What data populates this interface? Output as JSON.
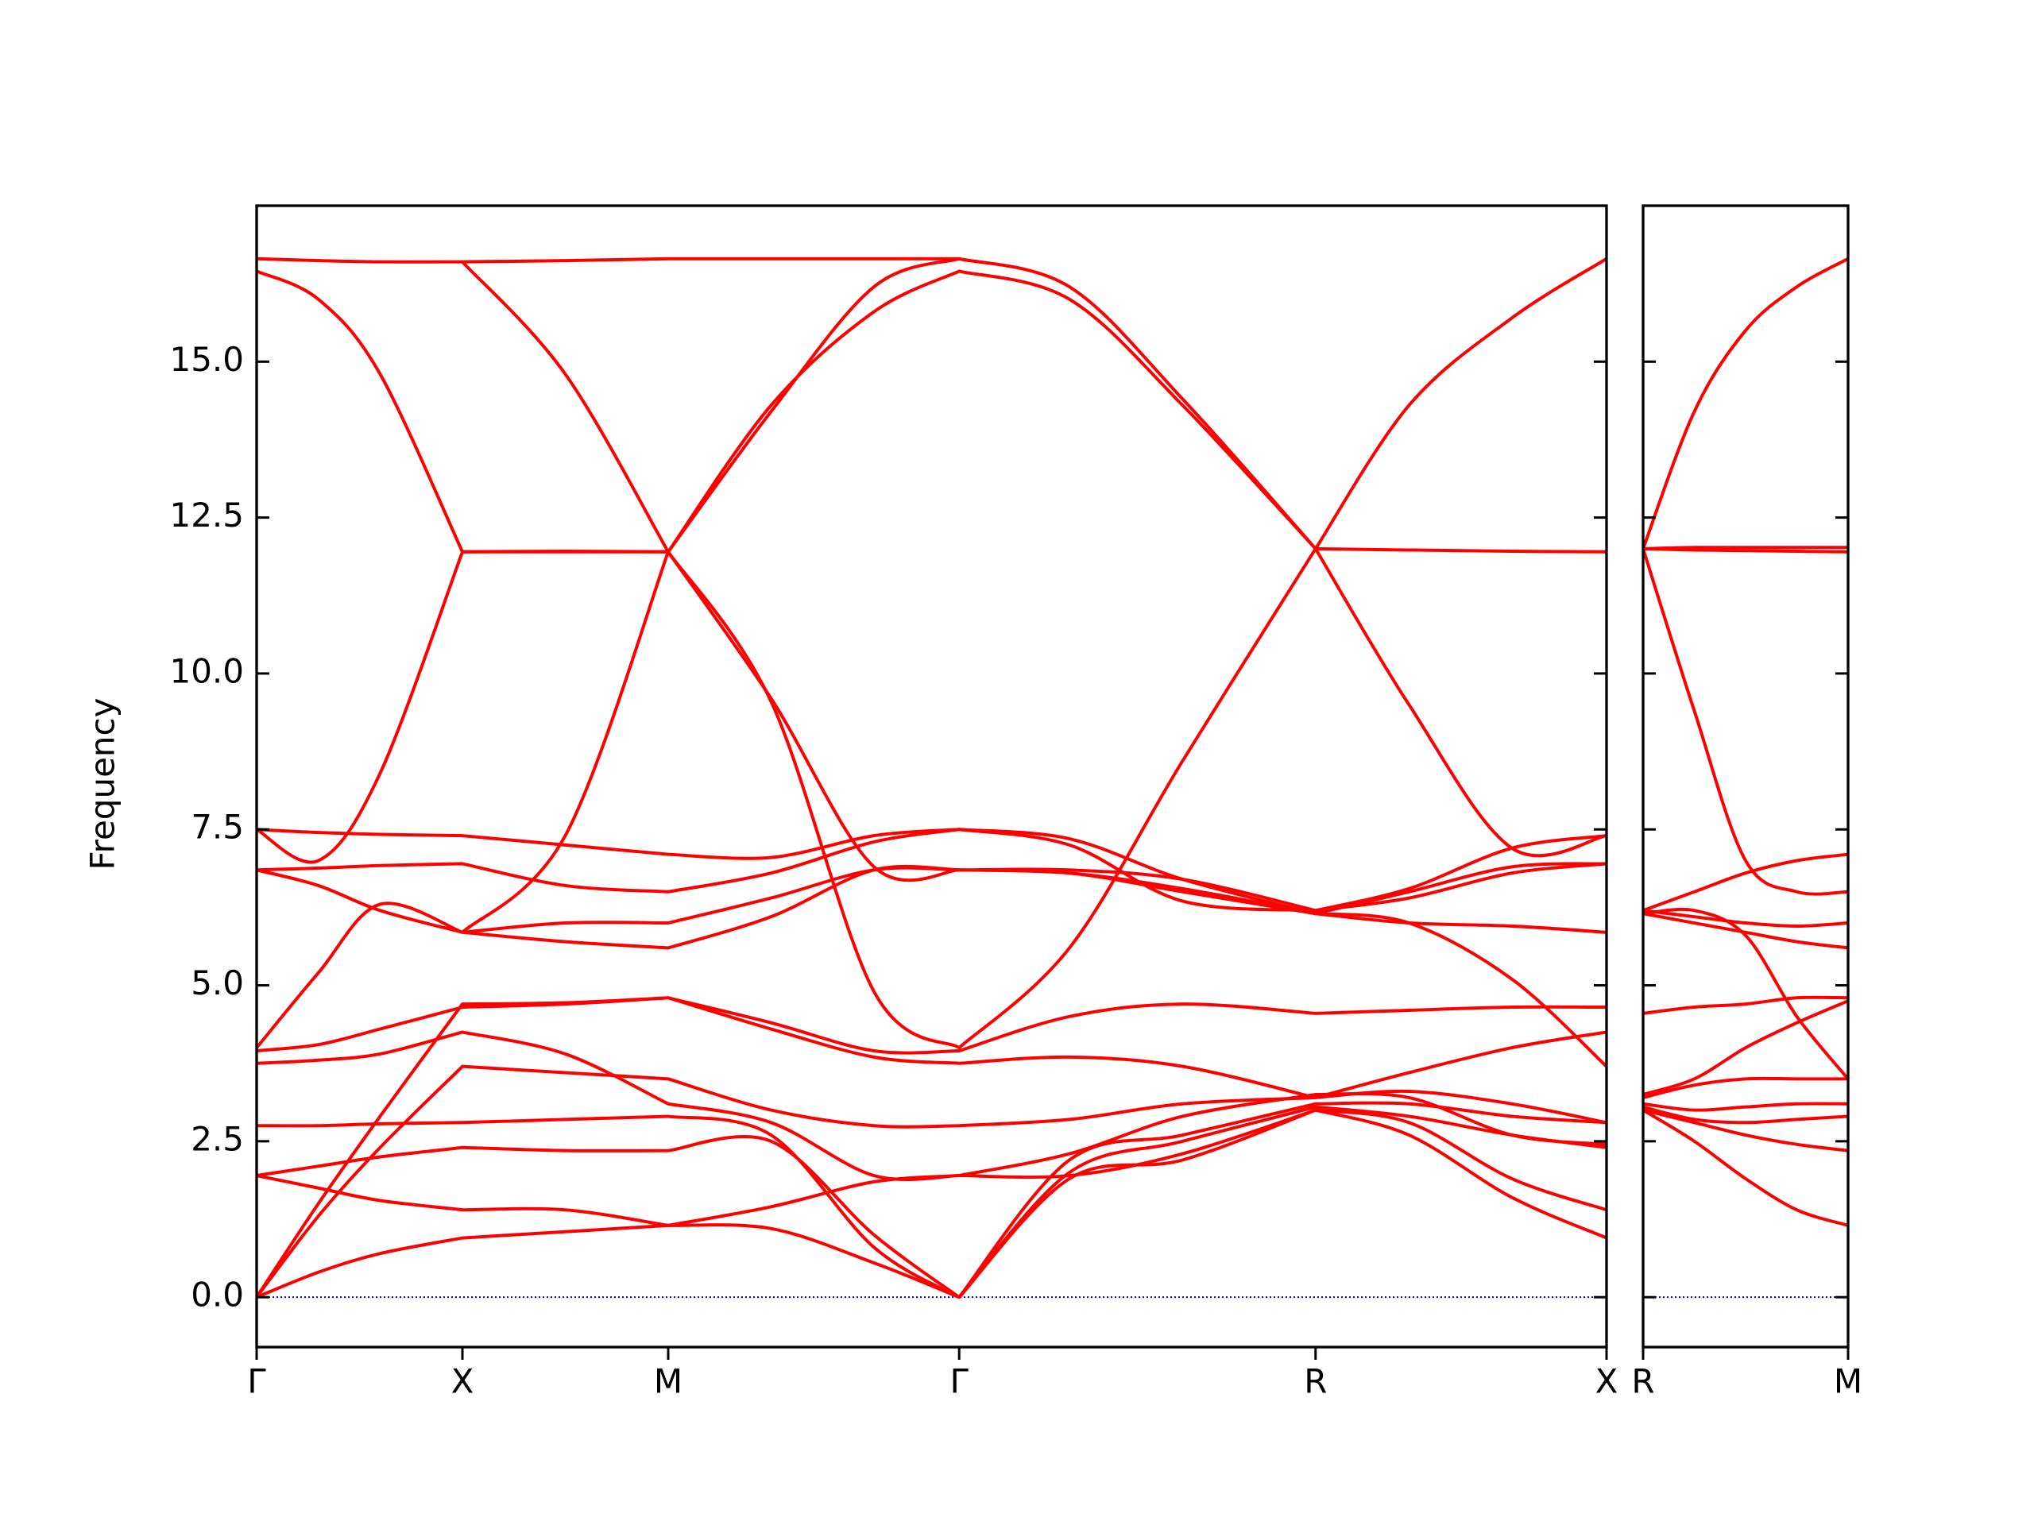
{
  "chart_data": [
    {
      "type": "line",
      "y_label": "Frequency",
      "color": "#ff0000",
      "x": [
        0,
        0.3,
        0.6,
        1,
        1.5,
        2,
        2.5,
        3.0,
        3.414,
        3.95,
        4.5,
        5.146,
        5.6,
        6.1,
        6.56
      ],
      "xlim": [
        0,
        6.56
      ],
      "xticks": [
        {
          "value": 0,
          "label": "Γ"
        },
        {
          "value": 1,
          "label": "X"
        },
        {
          "value": 2,
          "label": "M"
        },
        {
          "value": 3.414,
          "label": "Γ"
        },
        {
          "value": 5.146,
          "label": "R"
        },
        {
          "value": 6.56,
          "label": "X"
        }
      ],
      "ylim": [
        -0.8,
        17.5
      ],
      "yticks": [
        {
          "value": 0,
          "label": "0.0"
        },
        {
          "value": 2.5,
          "label": "2.5"
        },
        {
          "value": 5,
          "label": "5.0"
        },
        {
          "value": 7.5,
          "label": "7.5"
        },
        {
          "value": 10,
          "label": "10.0"
        },
        {
          "value": 12.5,
          "label": "12.5"
        },
        {
          "value": 15,
          "label": "15.0"
        }
      ],
      "zero_line": {
        "value": 0,
        "color": "#0000cc"
      },
      "series": [
        {
          "values": [
            0,
            0.4,
            0.7,
            0.95,
            1.05,
            1.15,
            1.1,
            0.55,
            0,
            1.9,
            2.2,
            3.0,
            2.6,
            1.6,
            0.95
          ]
        },
        {
          "values": [
            0,
            1.5,
            2.9,
            4.7,
            4.72,
            4.8,
            4.3,
            3.85,
            3.75,
            3.85,
            3.7,
            3.2,
            3.3,
            3.1,
            2.8
          ]
        },
        {
          "values": [
            0,
            1.3,
            2.4,
            3.7,
            3.6,
            3.5,
            3.0,
            2.75,
            2.75,
            2.85,
            3.1,
            3.2,
            3.6,
            4.0,
            4.25
          ]
        },
        {
          "values": [
            1.95,
            1.75,
            1.55,
            1.4,
            1.4,
            1.15,
            1.45,
            1.85,
            1.95,
            1.95,
            2.3,
            3.0,
            2.8,
            1.9,
            1.4
          ]
        },
        {
          "values": [
            1.95,
            2.1,
            2.25,
            2.4,
            2.35,
            2.35,
            2.5,
            1.0,
            0,
            2.0,
            2.5,
            3.05,
            2.9,
            2.6,
            2.4
          ]
        },
        {
          "values": [
            2.75,
            2.75,
            2.78,
            2.8,
            2.85,
            2.9,
            2.6,
            0.8,
            0,
            2.2,
            2.6,
            3.1,
            3.1,
            2.9,
            2.8
          ]
        },
        {
          "values": [
            3.75,
            3.8,
            3.9,
            4.25,
            3.9,
            3.1,
            2.8,
            1.95,
            1.95,
            2.3,
            2.9,
            3.25,
            3.2,
            2.6,
            2.45
          ]
        },
        {
          "values": [
            3.95,
            4.05,
            4.3,
            4.65,
            4.7,
            4.8,
            4.4,
            3.95,
            3.95,
            4.5,
            4.7,
            4.55,
            4.6,
            4.65,
            4.65
          ]
        },
        {
          "values": [
            4.0,
            5.2,
            6.3,
            5.85,
            5.7,
            5.6,
            6.1,
            6.85,
            6.85,
            6.8,
            6.5,
            6.15,
            6.0,
            5.1,
            3.7
          ]
        },
        {
          "values": [
            6.85,
            6.6,
            6.2,
            5.85,
            6.0,
            6.0,
            6.4,
            6.85,
            6.85,
            6.8,
            6.55,
            6.15,
            6.0,
            5.95,
            5.85
          ]
        },
        {
          "values": [
            6.85,
            6.88,
            6.92,
            6.95,
            6.6,
            6.5,
            6.8,
            7.3,
            7.5,
            7.25,
            6.35,
            6.2,
            6.4,
            6.8,
            6.95
          ]
        },
        {
          "values": [
            7.5,
            7.45,
            7.42,
            7.4,
            7.25,
            7.1,
            7.05,
            7.4,
            7.5,
            7.35,
            6.7,
            6.15,
            6.5,
            6.9,
            6.95
          ]
        },
        {
          "values": [
            7.5,
            7.0,
            8.4,
            11.95,
            11.95,
            11.95,
            null,
            null,
            null,
            null,
            null,
            null,
            null,
            null,
            null
          ]
        },
        {
          "values": [
            16.45,
            16.0,
            14.8,
            11.95,
            11.96,
            11.95,
            9.6,
            6.9,
            6.85,
            6.85,
            6.7,
            6.2,
            6.55,
            7.2,
            7.4
          ]
        },
        {
          "values": [
            16.65,
            16.62,
            16.6,
            16.6,
            16.62,
            16.65,
            16.65,
            16.65,
            16.65,
            null,
            null,
            null,
            null,
            null,
            null
          ]
        },
        {
          "values": [
            null,
            null,
            null,
            16.6,
            14.8,
            11.95,
            9.55,
            4.9,
            4.0,
            5.6,
            8.6,
            12.0,
            9.5,
            7.2,
            7.4
          ]
        },
        {
          "values": [
            null,
            null,
            null,
            5.85,
            7.4,
            11.95,
            14.3,
            15.8,
            16.45,
            16.0,
            14.3,
            12.0,
            14.3,
            15.7,
            16.65
          ]
        },
        {
          "values": [
            null,
            null,
            null,
            null,
            null,
            11.95,
            14.2,
            16.2,
            16.65,
            16.2,
            14.4,
            12.0,
            11.98,
            11.96,
            11.95
          ]
        }
      ]
    },
    {
      "type": "line",
      "color": "#ff0000",
      "sharey": true,
      "x": [
        0,
        0.25,
        0.5,
        0.75,
        1
      ],
      "xlim": [
        0,
        1
      ],
      "xticks": [
        {
          "value": 0,
          "label": "R"
        },
        {
          "value": 1,
          "label": "M"
        }
      ],
      "ylim": [
        -0.8,
        17.5
      ],
      "zero_line": {
        "value": 0,
        "color": "#0000cc"
      },
      "series": [
        {
          "values": [
            3.0,
            2.5,
            1.9,
            1.4,
            1.15
          ]
        },
        {
          "values": [
            3.0,
            2.8,
            2.6,
            2.45,
            2.35
          ]
        },
        {
          "values": [
            3.05,
            2.85,
            2.8,
            2.85,
            2.9
          ]
        },
        {
          "values": [
            3.1,
            3.0,
            3.05,
            3.1,
            3.1
          ]
        },
        {
          "values": [
            3.2,
            3.4,
            3.5,
            3.5,
            3.5
          ]
        },
        {
          "values": [
            3.25,
            3.5,
            4.0,
            4.4,
            4.75
          ]
        },
        {
          "values": [
            4.55,
            4.65,
            4.7,
            4.8,
            4.8
          ]
        },
        {
          "values": [
            6.15,
            6.2,
            5.8,
            4.5,
            3.5
          ]
        },
        {
          "values": [
            6.15,
            6.0,
            5.85,
            5.7,
            5.6
          ]
        },
        {
          "values": [
            6.2,
            6.1,
            6.0,
            5.95,
            6.0
          ]
        },
        {
          "values": [
            6.2,
            6.5,
            6.8,
            7.0,
            7.1
          ]
        },
        {
          "values": [
            12.0,
            9.4,
            7.0,
            6.5,
            6.5
          ]
        },
        {
          "values": [
            12.0,
            11.98,
            11.97,
            11.96,
            11.95
          ]
        },
        {
          "values": [
            12.0,
            12.02,
            12.02,
            12.02,
            12.02
          ]
        },
        {
          "values": [
            12.0,
            14.2,
            15.5,
            16.2,
            16.65
          ]
        }
      ]
    }
  ]
}
